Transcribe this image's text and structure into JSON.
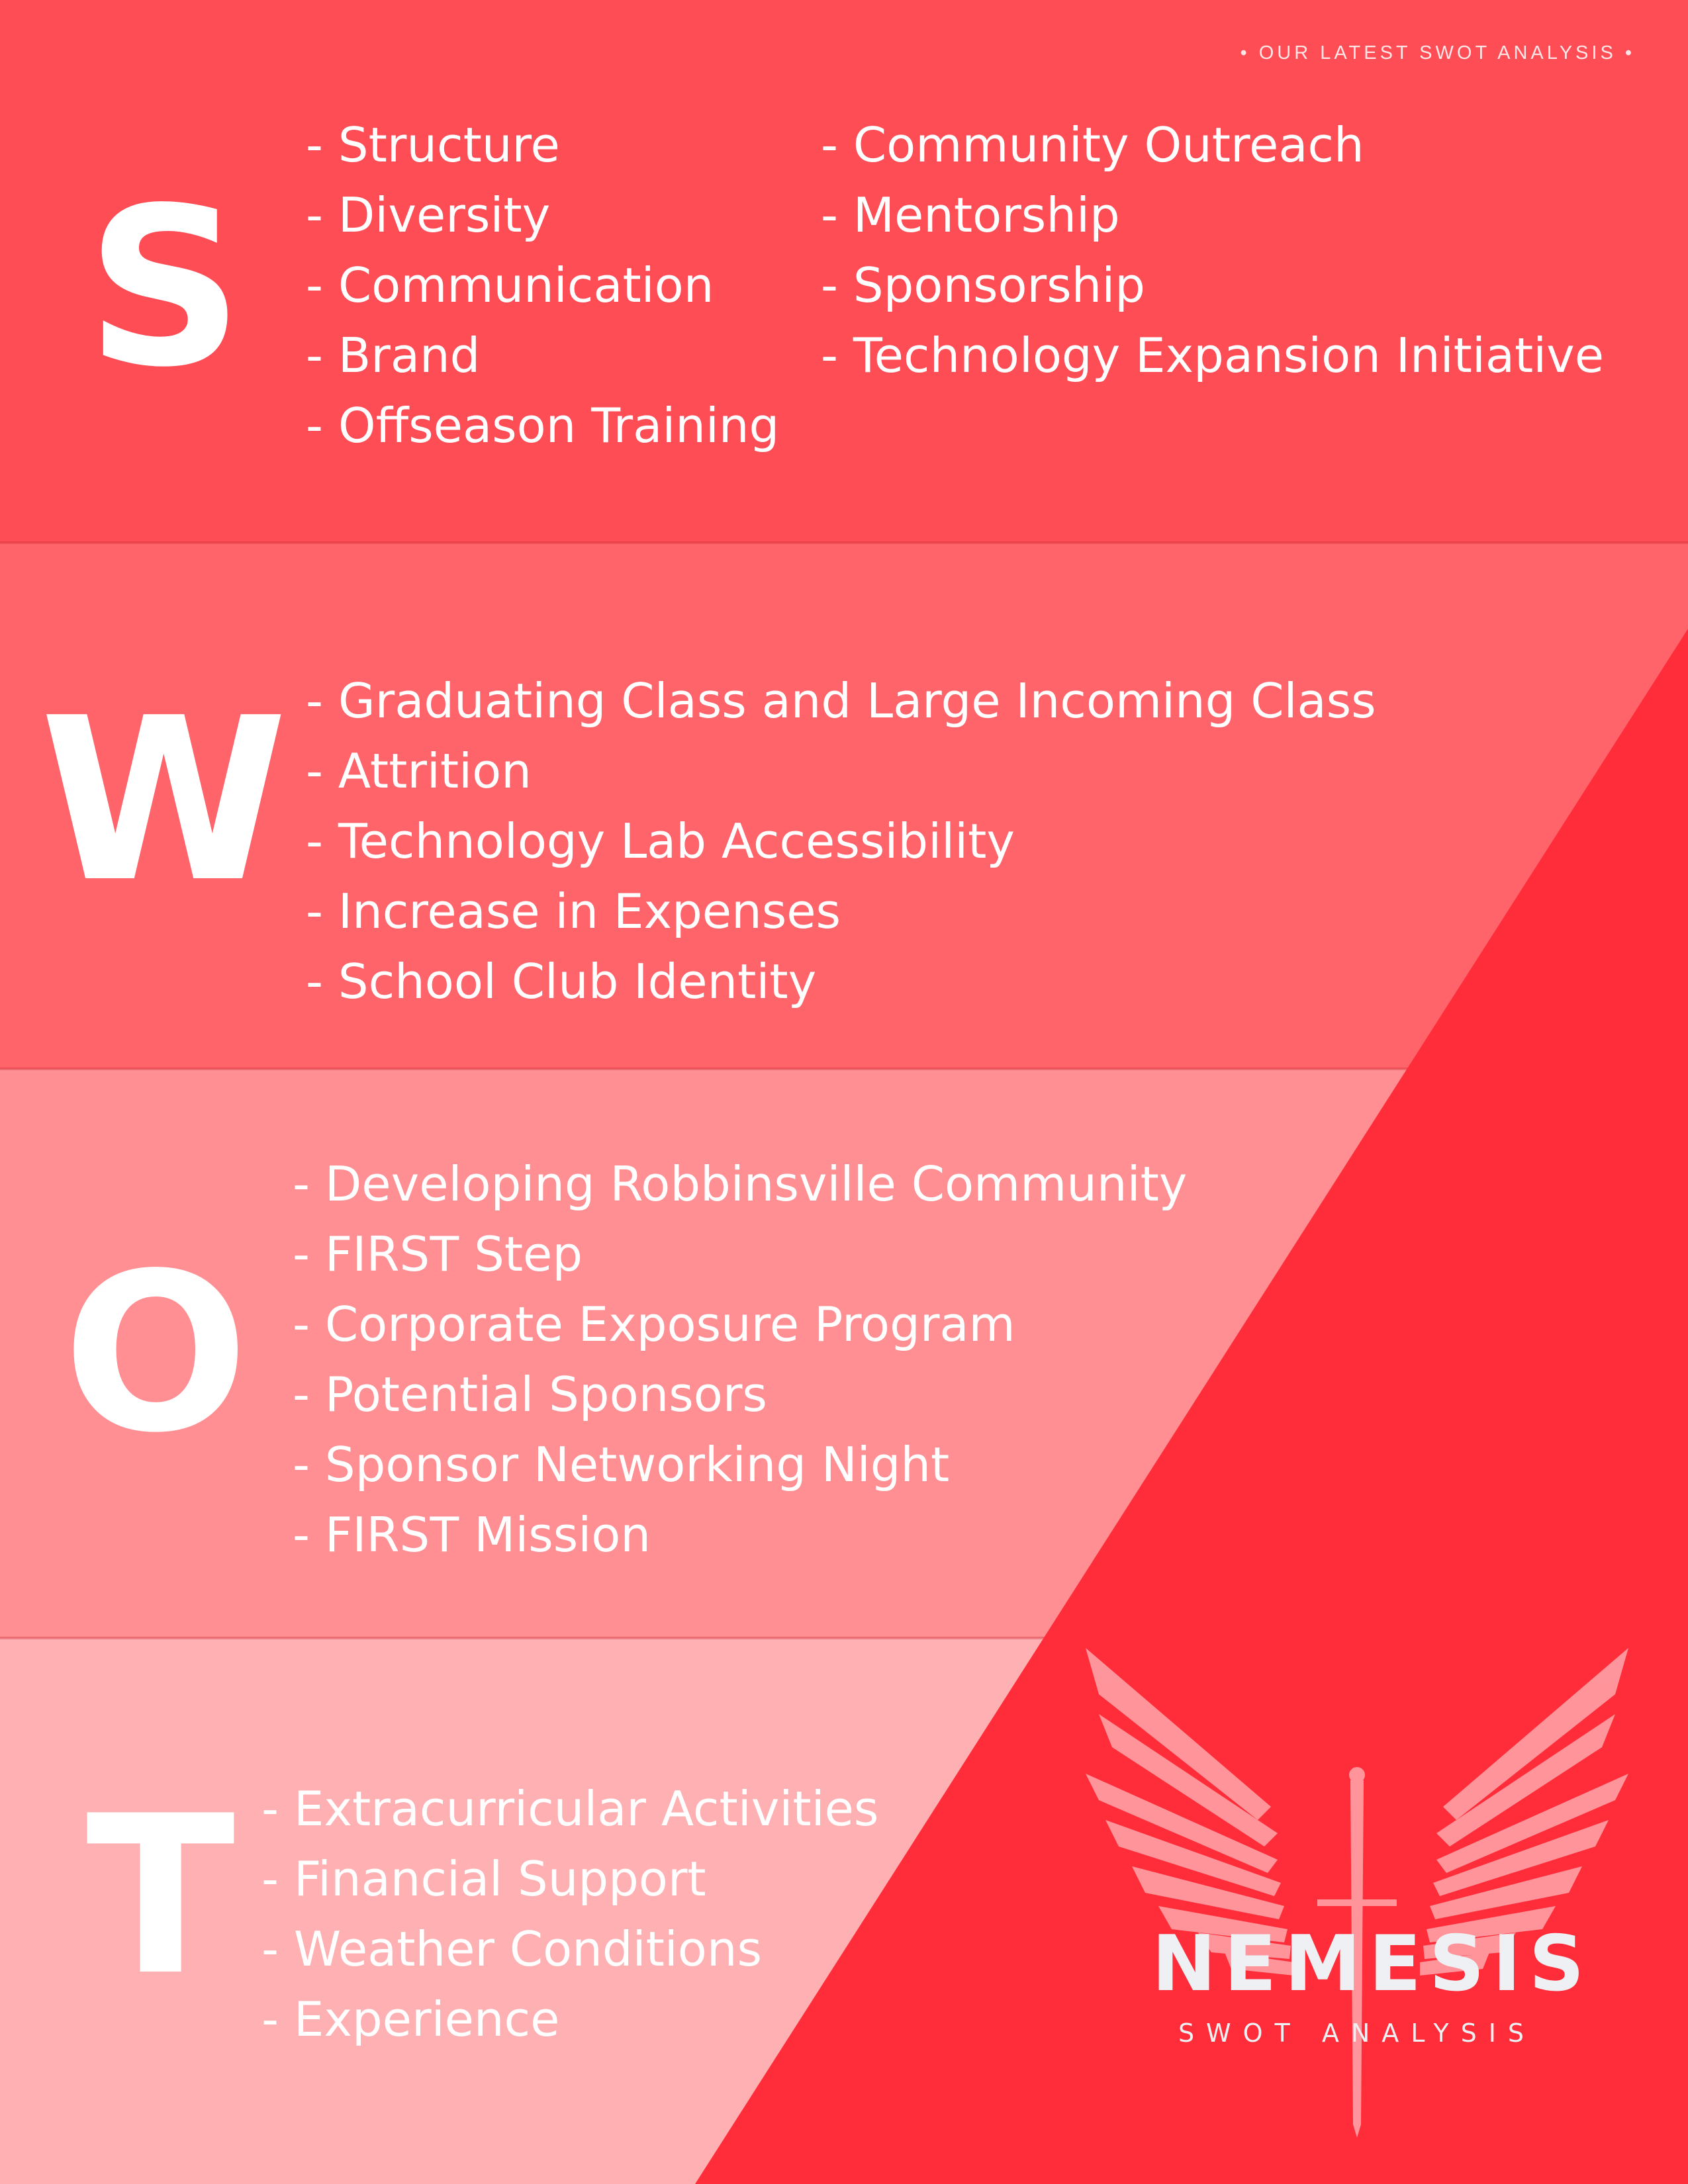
{
  "header": {
    "tag": "• OUR LATEST SWOT ANALYSIS •"
  },
  "strengths": {
    "letter": "S",
    "col1": [
      "- Structure",
      "- Diversity",
      "- Communication",
      "- Brand",
      "- Offseason Training"
    ],
    "col2": [
      "- Community Outreach",
      "- Mentorship",
      "- Sponsorship",
      "- Technology Expansion Initiative"
    ]
  },
  "weaknesses": {
    "letter": "W",
    "items": [
      "- Graduating Class and Large Incoming Class",
      "- Attrition",
      "- Technology Lab Accessibility",
      "- Increase in Expenses",
      "- School Club Identity"
    ]
  },
  "opportunities": {
    "letter": "O",
    "items": [
      "- Developing Robbinsville Community",
      "- FIRST Step",
      "- Corporate Exposure Program",
      "- Potential Sponsors",
      "- Sponsor Networking Night",
      "- FIRST Mission"
    ]
  },
  "threats": {
    "letter": "T",
    "items": [
      "- Extracurricular Activities",
      "- Financial Support",
      "- Weather Conditions",
      "- Experience"
    ]
  },
  "brand": {
    "name": "NEMESIS",
    "subtitle": "SWOT ANALYSIS",
    "logo_icon": "winged-sword-icon"
  },
  "colors": {
    "strengths_band": "#ff4d56",
    "weaknesses_band": "#ff646b",
    "opportunities_band": "#ff8f93",
    "threats_band": "#ffb0b3",
    "accent_red": "#ff2d3a"
  }
}
